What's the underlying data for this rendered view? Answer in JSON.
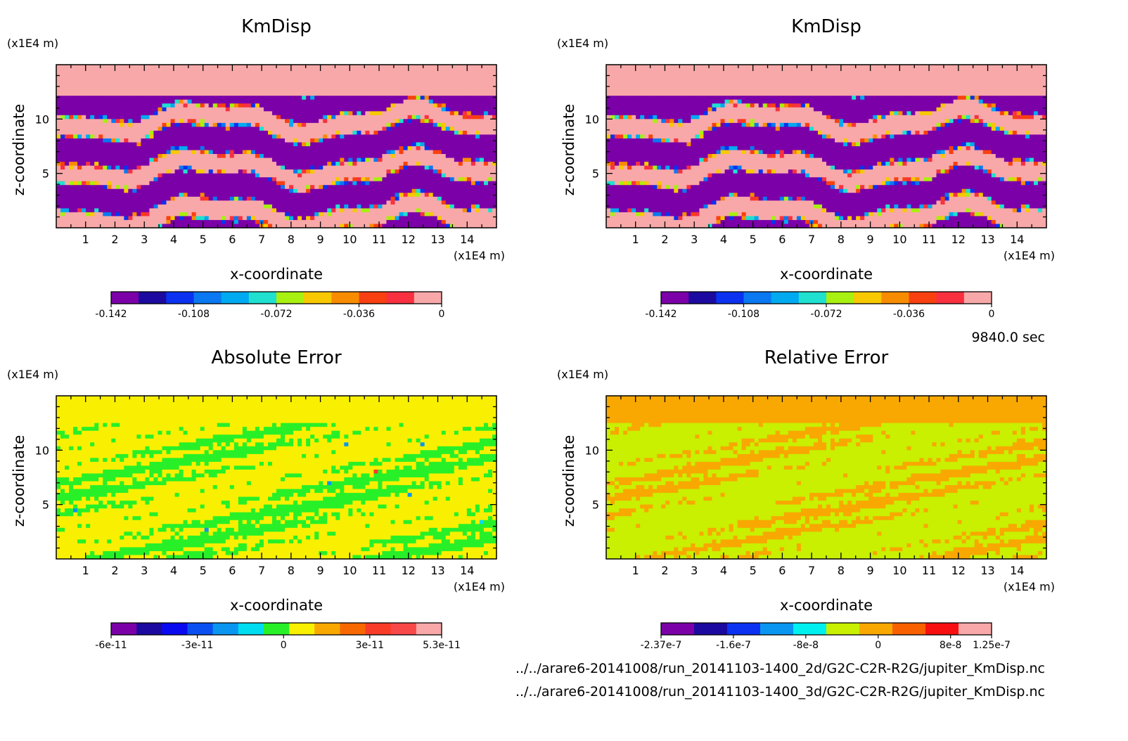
{
  "time_label": "9840.0 sec",
  "files": [
    "../../arare6-20141008/run_20141103-1400_2d/G2C-C2R-R2G/jupiter_KmDisp.nc",
    "../../arare6-20141008/run_20141103-1400_3d/G2C-C2R-R2G/jupiter_KmDisp.nc"
  ],
  "chart_data": [
    {
      "type": "heatmap",
      "title": "KmDisp",
      "xlabel": "x-coordinate",
      "ylabel": "z-coordinate",
      "x_unit": "(x1E4 m)",
      "y_unit": "(x1E4 m)",
      "xlim": [
        0,
        15
      ],
      "ylim": [
        0,
        15
      ],
      "x_ticks": [
        "1",
        "2",
        "3",
        "4",
        "5",
        "6",
        "7",
        "8",
        "9",
        "10",
        "11",
        "12",
        "13",
        "14"
      ],
      "y_ticks": [
        "5",
        "10"
      ],
      "pattern": "kmdisp",
      "colorbar": {
        "colors": [
          "#7B00A8",
          "#1C0AA0",
          "#0A32F0",
          "#0A78F0",
          "#00AAF0",
          "#20E0D0",
          "#A8F010",
          "#F8C800",
          "#F88C00",
          "#F84010",
          "#F83040",
          "#F8A8A8"
        ],
        "ticks": [
          [
            "-0.142",
            0
          ],
          [
            "-0.108",
            2
          ],
          [
            "-0.072",
            4
          ],
          [
            "-0.036",
            6
          ],
          [
            "0",
            8
          ]
        ],
        "tick_total": 8
      }
    },
    {
      "type": "heatmap",
      "title": "KmDisp",
      "xlabel": "x-coordinate",
      "ylabel": "z-coordinate",
      "x_unit": "(x1E4 m)",
      "y_unit": "(x1E4 m)",
      "xlim": [
        0,
        15
      ],
      "ylim": [
        0,
        15
      ],
      "x_ticks": [
        "1",
        "2",
        "3",
        "4",
        "5",
        "6",
        "7",
        "8",
        "9",
        "10",
        "11",
        "12",
        "13",
        "14"
      ],
      "y_ticks": [
        "5",
        "10"
      ],
      "pattern": "kmdisp",
      "colorbar": {
        "colors": [
          "#7B00A8",
          "#1C0AA0",
          "#0A32F0",
          "#0A78F0",
          "#00AAF0",
          "#20E0D0",
          "#A8F010",
          "#F8C800",
          "#F88C00",
          "#F84010",
          "#F83040",
          "#F8A8A8"
        ],
        "ticks": [
          [
            "-0.142",
            0
          ],
          [
            "-0.108",
            2
          ],
          [
            "-0.072",
            4
          ],
          [
            "-0.036",
            6
          ],
          [
            "0",
            8
          ]
        ],
        "tick_total": 8
      }
    },
    {
      "type": "heatmap",
      "title": "Absolute Error",
      "xlabel": "x-coordinate",
      "ylabel": "z-coordinate",
      "x_unit": "(x1E4 m)",
      "y_unit": "(x1E4 m)",
      "xlim": [
        0,
        15
      ],
      "ylim": [
        0,
        15
      ],
      "x_ticks": [
        "1",
        "2",
        "3",
        "4",
        "5",
        "6",
        "7",
        "8",
        "9",
        "10",
        "11",
        "12",
        "13",
        "14"
      ],
      "y_ticks": [
        "5",
        "10"
      ],
      "pattern": "abs",
      "colorbar": {
        "colors": [
          "#7B00A8",
          "#1C0AA0",
          "#0A0AF0",
          "#0A50F0",
          "#0A96F0",
          "#00DCF0",
          "#28F028",
          "#F8F000",
          "#F8A800",
          "#F86800",
          "#F83C28",
          "#F84848",
          "#F8A8A8"
        ],
        "ticks": [
          [
            "-6e-11",
            0
          ],
          [
            "-3e-11",
            3
          ],
          [
            "0",
            6
          ],
          [
            "3e-11",
            9
          ],
          [
            "5.3e-11",
            11.5
          ]
        ],
        "tick_total": 11.5
      }
    },
    {
      "type": "heatmap",
      "title": "Relative Error",
      "xlabel": "x-coordinate",
      "ylabel": "z-coordinate",
      "x_unit": "(x1E4 m)",
      "y_unit": "(x1E4 m)",
      "xlim": [
        0,
        15
      ],
      "ylim": [
        0,
        15
      ],
      "x_ticks": [
        "1",
        "2",
        "3",
        "4",
        "5",
        "6",
        "7",
        "8",
        "9",
        "10",
        "11",
        "12",
        "13",
        "14"
      ],
      "y_ticks": [
        "5",
        "10"
      ],
      "pattern": "rel",
      "colorbar": {
        "colors": [
          "#7B00A8",
          "#1C0AA0",
          "#0A32F0",
          "#0A96F0",
          "#00F0F0",
          "#C8F000",
          "#F8A800",
          "#F86000",
          "#F81010",
          "#F8A8A8"
        ],
        "ticks": [
          [
            "-2.37e-7",
            0
          ],
          [
            "-1.6e-7",
            1.5
          ],
          [
            "-8e-8",
            3
          ],
          [
            "0",
            4.5
          ],
          [
            "8e-8",
            6
          ],
          [
            "1.25e-7",
            6.85
          ]
        ],
        "tick_total": 6.85
      }
    }
  ]
}
